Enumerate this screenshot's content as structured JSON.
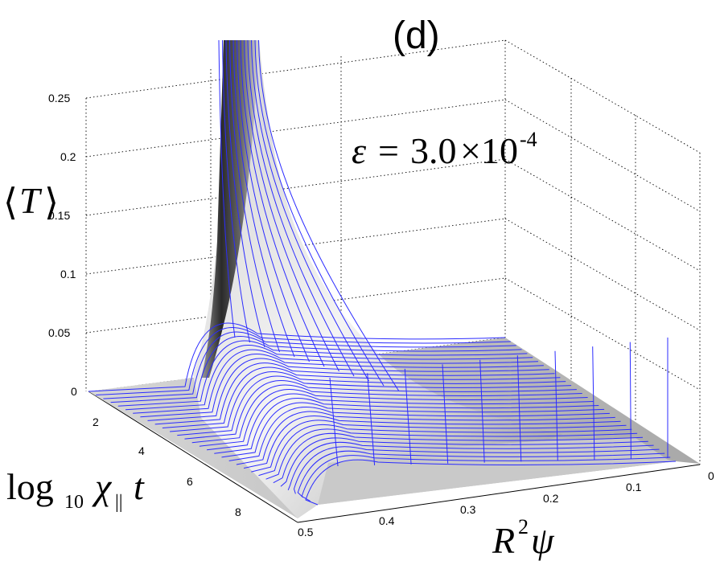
{
  "panel_label": "(d)",
  "annotation": {
    "epsilon_symbol": "ε",
    "equals": "=",
    "mantissa": "3.0",
    "times": "×10",
    "exponent": "-4"
  },
  "z_axis": {
    "label_left": "⟨",
    "label_var": "T",
    "label_right": "⟩",
    "ticks": [
      "0",
      "0.05",
      "0.1",
      "0.15",
      "0.2",
      "0.25"
    ]
  },
  "y_axis": {
    "label_log": "log",
    "label_base": "10",
    "label_chi": "χ",
    "label_par": "||",
    "label_t": "t",
    "ticks": [
      "2",
      "4",
      "6",
      "8"
    ]
  },
  "x_axis": {
    "label_R": "R",
    "label_sup": "2",
    "label_psi": "ψ",
    "ticks": [
      "0",
      "0.1",
      "0.2",
      "0.3",
      "0.4",
      "0.5"
    ]
  },
  "colors": {
    "wireframe": "#2b2bff",
    "surface_light": "#f2f2f2",
    "surface_dark": "#1a1a1a"
  },
  "chart_data": {
    "type": "surface",
    "title": "(d)",
    "annotation": "ε = 3.0×10^-4",
    "xlabel": "R^2 ψ",
    "ylabel": "log10 χ|| t",
    "zlabel": "⟨T⟩",
    "xlim": [
      0,
      0.5
    ],
    "ylim": [
      1,
      9
    ],
    "zlim": [
      0,
      0.25
    ],
    "x_ticks": [
      0,
      0.1,
      0.2,
      0.3,
      0.4,
      0.5
    ],
    "y_ticks": [
      2,
      4,
      6,
      8
    ],
    "z_ticks": [
      0,
      0.05,
      0.1,
      0.15,
      0.2,
      0.25
    ],
    "grid": true,
    "series": [
      {
        "x": 0.5,
        "values_at_y": [
          [
            1,
            0
          ],
          [
            2,
            0
          ],
          [
            4,
            0
          ],
          [
            6,
            0.015
          ],
          [
            8,
            0.02
          ],
          [
            9,
            0.02
          ]
        ]
      },
      {
        "x": 0.4,
        "values_at_y": [
          [
            1,
            0
          ],
          [
            2,
            0.01
          ],
          [
            4,
            0.04
          ],
          [
            6,
            0.04
          ],
          [
            8,
            0.04
          ],
          [
            9,
            0.04
          ]
        ]
      },
      {
        "x": 0.3,
        "values_at_y": [
          [
            1,
            0
          ],
          [
            2,
            0.02
          ],
          [
            4,
            0.1
          ],
          [
            6,
            0.07
          ],
          [
            8,
            0.05
          ],
          [
            9,
            0.05
          ]
        ]
      },
      {
        "x": 0.26,
        "values_at_y": [
          [
            1,
            0.3
          ],
          [
            2,
            0.25
          ],
          [
            4,
            0.15
          ],
          [
            6,
            0.09
          ],
          [
            8,
            0.06
          ],
          [
            9,
            0.06
          ]
        ]
      },
      {
        "x": 0.2,
        "values_at_y": [
          [
            1,
            0
          ],
          [
            2,
            0.01
          ],
          [
            4,
            0.02
          ],
          [
            6,
            0.03
          ],
          [
            8,
            0.02
          ],
          [
            9,
            0.02
          ]
        ]
      },
      {
        "x": 0.1,
        "values_at_y": [
          [
            1,
            0
          ],
          [
            2,
            0
          ],
          [
            4,
            0.005
          ],
          [
            6,
            0.01
          ],
          [
            8,
            0.015
          ],
          [
            9,
            0.015
          ]
        ]
      },
      {
        "x": 0.0,
        "values_at_y": [
          [
            1,
            0
          ],
          [
            2,
            0
          ],
          [
            4,
            0
          ],
          [
            6,
            0
          ],
          [
            8,
            0
          ],
          [
            9,
            0
          ]
        ]
      }
    ]
  }
}
